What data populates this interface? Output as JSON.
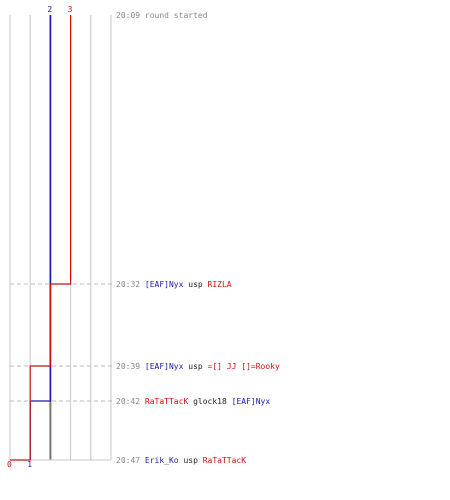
{
  "colors": {
    "team_blue": "#1a1aaa",
    "team_red": "#cc1111",
    "time_gray": "#888888",
    "event_black": "#222222",
    "grid": "#c8c8c8",
    "grid_center": "#777777",
    "dash": "#bbbbbb"
  },
  "chart_data": {
    "type": "line",
    "title": "",
    "xlabel": "",
    "ylabel": "",
    "grid": true,
    "start_label": {
      "time": "20:09",
      "text": "round started"
    },
    "series": [
      {
        "team": "blue",
        "color": "#1a1aaa",
        "label_top": "2",
        "label_bottom": "1",
        "steps": [
          {
            "time": "20:09",
            "value": 2
          },
          {
            "time": "20:42",
            "value": 1
          },
          {
            "time": "20:47",
            "value": 1
          }
        ]
      },
      {
        "team": "red",
        "color": "#cc1111",
        "label_top": "3",
        "label_bottom": "0",
        "steps": [
          {
            "time": "20:09",
            "value": 3
          },
          {
            "time": "20:32",
            "value": 2
          },
          {
            "time": "20:39",
            "value": 1
          },
          {
            "time": "20:47",
            "value": 0
          }
        ]
      }
    ],
    "events": [
      {
        "time": "20:32",
        "killer": "[EAF]Nyx",
        "killer_team": "blue",
        "weapon": "usp",
        "victim": "RIZLA",
        "victim_team": "red"
      },
      {
        "time": "20:39",
        "killer": "[EAF]Nyx",
        "killer_team": "blue",
        "weapon": "usp",
        "victim": "=[] JJ []=Rooky",
        "victim_team": "red"
      },
      {
        "time": "20:42",
        "killer": "RaTaTTacK",
        "killer_team": "red",
        "weapon": "glock18",
        "victim": "[EAF]Nyx",
        "victim_team": "blue"
      },
      {
        "time": "20:47",
        "killer": "Erik_Ko",
        "killer_team": "blue",
        "weapon": "usp",
        "victim": "RaTaTTacK",
        "victim_team": "red"
      }
    ]
  }
}
